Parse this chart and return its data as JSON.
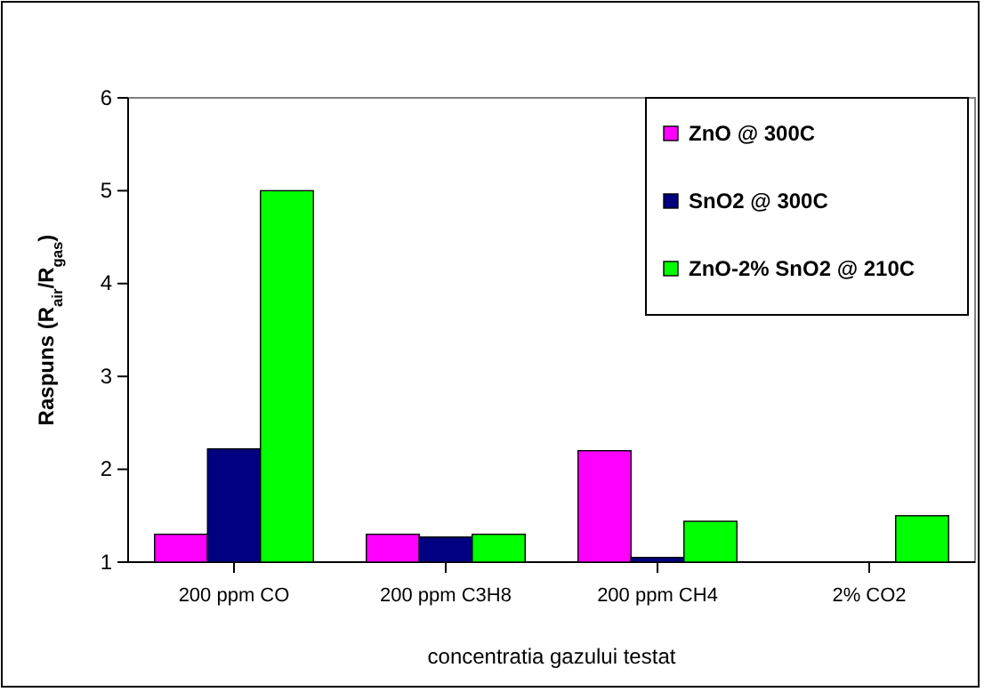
{
  "chart_data": {
    "type": "bar",
    "xlabel": "concentratia gazului testat",
    "ylabel": "Raspuns (R$_{air}$/R$_{gas}$)",
    "categories": [
      "200 ppm CO",
      "200 ppm C3H8",
      "200 ppm CH4",
      "2% CO2"
    ],
    "series": [
      {
        "name": "ZnO @ 300C",
        "color": "#ff00ff",
        "values": [
          1.3,
          1.3,
          2.2,
          null
        ]
      },
      {
        "name": "SnO2 @ 300C",
        "color": "#000080",
        "values": [
          2.22,
          1.27,
          1.05,
          null
        ]
      },
      {
        "name": "ZnO-2% SnO2 @ 210C",
        "color": "#00ff00",
        "values": [
          5.0,
          1.3,
          1.44,
          1.5
        ]
      }
    ],
    "ylim": [
      1,
      6
    ],
    "yticks": [
      1,
      2,
      3,
      4,
      5,
      6
    ],
    "grid": false,
    "legend": "top right"
  }
}
